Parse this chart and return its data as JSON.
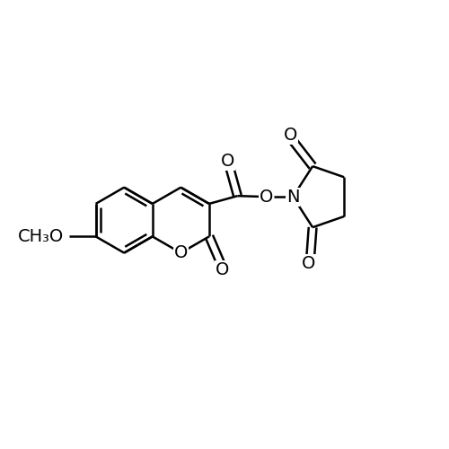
{
  "bg_color": "#ffffff",
  "line_color": "#000000",
  "line_width": 1.8,
  "font_size": 14,
  "figsize": [
    5.0,
    5.0
  ],
  "dpi": 100,
  "xlim": [
    0,
    10
  ],
  "ylim": [
    0,
    10
  ]
}
